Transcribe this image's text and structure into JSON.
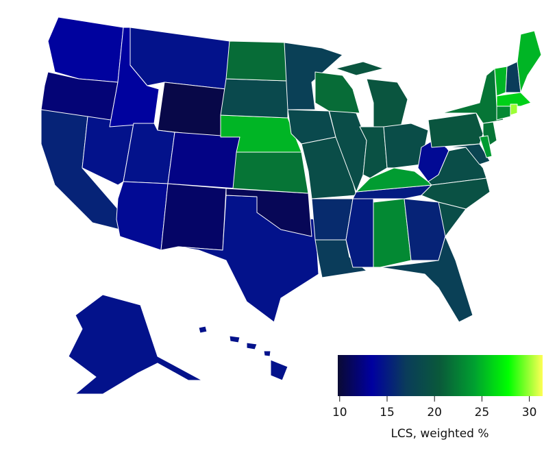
{
  "chart_data": {
    "type": "choropleth",
    "values": [
      13.5,
      12,
      15.5,
      14.5,
      13.5,
      14.5,
      10.5,
      14.5,
      12.5,
      14,
      11.5,
      14.5,
      11,
      22,
      25,
      18.5,
      21.5,
      17.5,
      18.5,
      19,
      16,
      17,
      15,
      23,
      15,
      24,
      19,
      21.5,
      20,
      19.5,
      19,
      14,
      19,
      19.5,
      19,
      15.5,
      17.5,
      20,
      22,
      22,
      18,
      24,
      25,
      17,
      25,
      26,
      23,
      30,
      14.5,
      14.5
    ],
    "colormap": [
      "#0a0a33",
      "#0000a0",
      "#0a3c5a",
      "#0a5a3a",
      "#00a030",
      "#00ff00",
      "#ffff55"
    ],
    "clim": [
      9.8,
      31.4
    ],
    "ticks": [
      10,
      15,
      20,
      25,
      30
    ],
    "colorbar_label": "LCS, weighted %"
  }
}
